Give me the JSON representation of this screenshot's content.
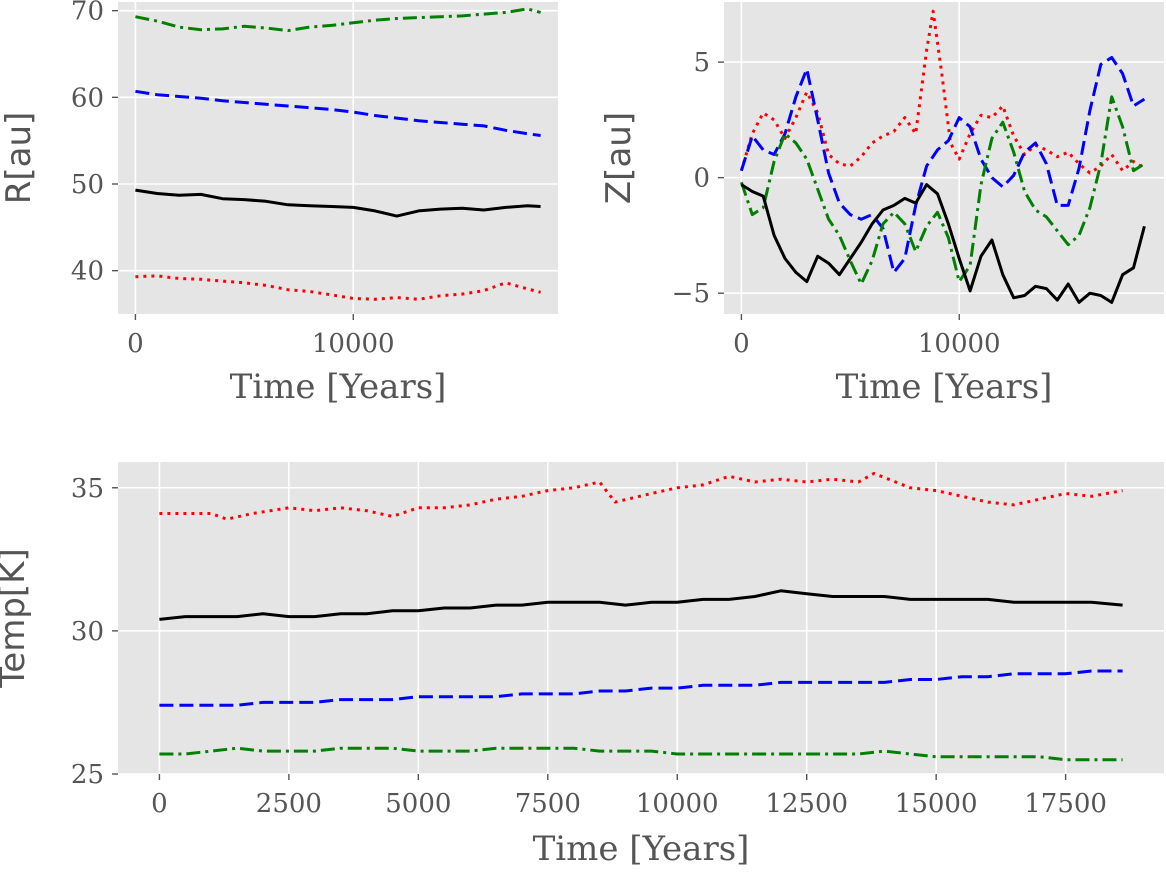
{
  "chart_data": [
    {
      "id": "radius",
      "type": "line",
      "title": "",
      "xlabel": "Time [Years]",
      "ylabel": "R[au]",
      "xlim": [
        -800,
        19400
      ],
      "ylim": [
        35,
        71
      ],
      "xticks": [
        0,
        10000
      ],
      "xtick_labels": [
        "0",
        "10000"
      ],
      "yticks": [
        40,
        50,
        60,
        70
      ],
      "ytick_labels": [
        "40",
        "50",
        "60",
        "70"
      ],
      "grid": true,
      "series": [
        {
          "name": "green",
          "color": "#008000",
          "dash": "dashdot",
          "x": [
            0,
            1000,
            2000,
            3000,
            4000,
            5000,
            6000,
            7000,
            8000,
            9000,
            10000,
            11000,
            12000,
            13000,
            14000,
            15000,
            16000,
            17000,
            18000,
            18600
          ],
          "y": [
            69.3,
            68.8,
            68.1,
            67.8,
            67.9,
            68.2,
            68.0,
            67.7,
            68.1,
            68.3,
            68.6,
            68.9,
            69.1,
            69.2,
            69.3,
            69.4,
            69.6,
            69.8,
            70.2,
            69.8
          ]
        },
        {
          "name": "blue",
          "color": "#0000ff",
          "dash": "dashed",
          "x": [
            0,
            1000,
            2000,
            3000,
            4000,
            5000,
            6000,
            7000,
            8000,
            9000,
            10000,
            11000,
            12000,
            13000,
            14000,
            15000,
            16000,
            17000,
            18000,
            18600
          ],
          "y": [
            60.7,
            60.3,
            60.1,
            59.9,
            59.6,
            59.4,
            59.2,
            59.0,
            58.8,
            58.6,
            58.3,
            57.9,
            57.6,
            57.3,
            57.1,
            56.9,
            56.7,
            56.2,
            55.8,
            55.6
          ]
        },
        {
          "name": "black",
          "color": "#000000",
          "dash": "solid",
          "x": [
            0,
            1000,
            2000,
            3000,
            4000,
            5000,
            6000,
            7000,
            8000,
            9000,
            10000,
            11000,
            12000,
            13000,
            14000,
            15000,
            16000,
            17000,
            18000,
            18600
          ],
          "y": [
            49.3,
            48.9,
            48.7,
            48.8,
            48.3,
            48.2,
            48.0,
            47.6,
            47.5,
            47.4,
            47.3,
            46.9,
            46.3,
            46.9,
            47.1,
            47.2,
            47.0,
            47.3,
            47.5,
            47.4
          ]
        },
        {
          "name": "red",
          "color": "#ff0000",
          "dash": "dotted",
          "x": [
            0,
            1000,
            2000,
            3000,
            4000,
            5000,
            6000,
            7000,
            8000,
            9000,
            10000,
            11000,
            12000,
            13000,
            14000,
            15000,
            16000,
            17000,
            18000,
            18600
          ],
          "y": [
            39.3,
            39.4,
            39.1,
            39.0,
            38.8,
            38.6,
            38.3,
            37.8,
            37.6,
            37.2,
            36.8,
            36.7,
            36.9,
            36.7,
            37.1,
            37.3,
            37.7,
            38.6,
            37.9,
            37.5
          ]
        }
      ]
    },
    {
      "id": "height",
      "type": "line",
      "title": "",
      "xlabel": "Time [Years]",
      "ylabel": "Z[au]",
      "xlim": [
        -800,
        19400
      ],
      "ylim": [
        -5.9,
        7.6
      ],
      "xticks": [
        0,
        10000
      ],
      "xtick_labels": [
        "0",
        "10000"
      ],
      "yticks": [
        -5,
        0,
        5
      ],
      "ytick_labels": [
        "−5",
        "0",
        "5"
      ],
      "grid": true,
      "series": [
        {
          "name": "red",
          "color": "#ff0000",
          "dash": "dotted",
          "x": [
            0,
            500,
            1000,
            1500,
            2000,
            2500,
            3000,
            3500,
            4000,
            4500,
            5000,
            5500,
            6000,
            6500,
            7000,
            7500,
            8000,
            8500,
            8800,
            9200,
            9600,
            10000,
            10500,
            11000,
            11500,
            12000,
            12500,
            13000,
            13500,
            14000,
            14500,
            15000,
            15500,
            16000,
            16500,
            17000,
            17500,
            18000,
            18500
          ],
          "y": [
            0.3,
            1.9,
            2.8,
            2.5,
            1.7,
            2.6,
            3.7,
            2.8,
            1.0,
            0.6,
            0.5,
            0.9,
            1.5,
            1.8,
            2.0,
            2.6,
            1.9,
            5.5,
            7.2,
            4.5,
            1.5,
            0.8,
            1.9,
            2.7,
            2.6,
            3.1,
            1.8,
            1.0,
            1.4,
            1.2,
            0.9,
            1.1,
            0.6,
            0.2,
            0.5,
            1.0,
            0.3,
            0.7,
            0.4
          ]
        },
        {
          "name": "blue",
          "color": "#0000ff",
          "dash": "dashed",
          "x": [
            0,
            500,
            1000,
            1500,
            2000,
            2500,
            3000,
            3500,
            4000,
            4500,
            5000,
            5500,
            6000,
            6500,
            7000,
            7500,
            8000,
            8500,
            9000,
            9500,
            10000,
            10500,
            11000,
            11500,
            12000,
            12500,
            13000,
            13500,
            14000,
            14500,
            15000,
            15500,
            16000,
            16500,
            17000,
            17500,
            18000,
            18500
          ],
          "y": [
            0.3,
            1.8,
            1.2,
            1.0,
            1.9,
            3.5,
            4.7,
            2.5,
            0.2,
            -1.1,
            -1.6,
            -1.8,
            -1.6,
            -2.2,
            -4.1,
            -3.5,
            -1.2,
            0.5,
            1.2,
            1.6,
            2.6,
            2.2,
            0.8,
            0.0,
            -0.4,
            0.1,
            1.1,
            1.5,
            0.6,
            -1.2,
            -1.2,
            0.4,
            2.9,
            4.9,
            5.2,
            4.5,
            3.1,
            3.4
          ]
        },
        {
          "name": "green",
          "color": "#008000",
          "dash": "dashdot",
          "x": [
            0,
            500,
            1000,
            1500,
            2000,
            2500,
            3000,
            3500,
            4000,
            4500,
            5000,
            5500,
            6000,
            6500,
            7000,
            7500,
            8000,
            8500,
            9000,
            9500,
            10000,
            10500,
            11000,
            11500,
            12000,
            12500,
            13000,
            13500,
            14000,
            14500,
            15000,
            15500,
            16000,
            16500,
            17000,
            17500,
            18000,
            18500
          ],
          "y": [
            -0.2,
            -1.6,
            -1.3,
            0.7,
            1.9,
            1.5,
            0.8,
            -0.5,
            -1.8,
            -2.5,
            -3.6,
            -4.6,
            -3.6,
            -2.0,
            -1.5,
            -2.0,
            -3.2,
            -2.1,
            -1.5,
            -2.6,
            -4.5,
            -3.8,
            -0.3,
            1.7,
            2.4,
            1.1,
            -0.6,
            -1.4,
            -1.7,
            -2.3,
            -2.9,
            -2.5,
            -1.3,
            0.6,
            3.5,
            2.2,
            0.3,
            0.6
          ]
        },
        {
          "name": "black",
          "color": "#000000",
          "dash": "solid",
          "x": [
            0,
            500,
            1000,
            1500,
            2000,
            2500,
            3000,
            3500,
            4000,
            4500,
            5000,
            5500,
            6000,
            6500,
            7000,
            7500,
            8000,
            8500,
            9000,
            9500,
            10000,
            10500,
            11000,
            11500,
            12000,
            12500,
            13000,
            13500,
            14000,
            14500,
            15000,
            15500,
            16000,
            16500,
            17000,
            17500,
            18000,
            18500
          ],
          "y": [
            -0.3,
            -0.6,
            -0.8,
            -2.5,
            -3.5,
            -4.1,
            -4.5,
            -3.4,
            -3.7,
            -4.2,
            -3.5,
            -2.8,
            -2.0,
            -1.4,
            -1.2,
            -0.9,
            -1.1,
            -0.3,
            -0.7,
            -2.0,
            -3.5,
            -4.9,
            -3.4,
            -2.7,
            -4.2,
            -5.2,
            -5.1,
            -4.7,
            -4.8,
            -5.3,
            -4.6,
            -5.4,
            -5.0,
            -5.1,
            -5.4,
            -4.2,
            -3.9,
            -2.1
          ]
        }
      ]
    },
    {
      "id": "temperature",
      "type": "line",
      "title": "",
      "xlabel": "Time [Years]",
      "ylabel": "Temp[K]",
      "xlim": [
        -800,
        19400
      ],
      "ylim": [
        25,
        35.9
      ],
      "xticks": [
        0,
        2500,
        5000,
        7500,
        10000,
        12500,
        15000,
        17500
      ],
      "xtick_labels": [
        "0",
        "2500",
        "5000",
        "7500",
        "10000",
        "12500",
        "15000",
        "17500"
      ],
      "yticks": [
        25,
        30,
        35
      ],
      "ytick_labels": [
        "25",
        "30",
        "35"
      ],
      "grid": true,
      "series": [
        {
          "name": "red",
          "color": "#ff0000",
          "dash": "dotted",
          "x": [
            0,
            500,
            1000,
            1300,
            1800,
            2500,
            3000,
            3500,
            4000,
            4500,
            5000,
            5500,
            6000,
            6500,
            7000,
            7500,
            8000,
            8500,
            8800,
            9500,
            10000,
            10500,
            11000,
            11500,
            12000,
            12500,
            13000,
            13500,
            13800,
            14500,
            15000,
            15500,
            16000,
            16500,
            17000,
            17500,
            18000,
            18600
          ],
          "y": [
            34.1,
            34.1,
            34.1,
            33.9,
            34.1,
            34.3,
            34.2,
            34.3,
            34.2,
            34.0,
            34.3,
            34.3,
            34.4,
            34.6,
            34.7,
            34.9,
            35.0,
            35.2,
            34.5,
            34.8,
            35.0,
            35.1,
            35.4,
            35.2,
            35.3,
            35.2,
            35.3,
            35.2,
            35.5,
            35.0,
            34.9,
            34.7,
            34.5,
            34.4,
            34.6,
            34.8,
            34.7,
            34.9
          ]
        },
        {
          "name": "black",
          "color": "#000000",
          "dash": "solid",
          "x": [
            0,
            500,
            1000,
            1500,
            2000,
            2500,
            3000,
            3500,
            4000,
            4500,
            5000,
            5500,
            6000,
            6500,
            7000,
            7500,
            8000,
            8500,
            9000,
            9500,
            10000,
            10500,
            11000,
            11500,
            12000,
            12500,
            13000,
            13500,
            14000,
            14500,
            15000,
            15500,
            16000,
            16500,
            17000,
            17500,
            18000,
            18600
          ],
          "y": [
            30.4,
            30.5,
            30.5,
            30.5,
            30.6,
            30.5,
            30.5,
            30.6,
            30.6,
            30.7,
            30.7,
            30.8,
            30.8,
            30.9,
            30.9,
            31.0,
            31.0,
            31.0,
            30.9,
            31.0,
            31.0,
            31.1,
            31.1,
            31.2,
            31.4,
            31.3,
            31.2,
            31.2,
            31.2,
            31.1,
            31.1,
            31.1,
            31.1,
            31.0,
            31.0,
            31.0,
            31.0,
            30.9
          ]
        },
        {
          "name": "blue",
          "color": "#0000ff",
          "dash": "dashed",
          "x": [
            0,
            500,
            1000,
            1500,
            2000,
            2500,
            3000,
            3500,
            4000,
            4500,
            5000,
            5500,
            6000,
            6500,
            7000,
            7500,
            8000,
            8500,
            9000,
            9500,
            10000,
            10500,
            11000,
            11500,
            12000,
            12500,
            13000,
            13500,
            14000,
            14500,
            15000,
            15500,
            16000,
            16500,
            17000,
            17500,
            18000,
            18600
          ],
          "y": [
            27.4,
            27.4,
            27.4,
            27.4,
            27.5,
            27.5,
            27.5,
            27.6,
            27.6,
            27.6,
            27.7,
            27.7,
            27.7,
            27.7,
            27.8,
            27.8,
            27.8,
            27.9,
            27.9,
            28.0,
            28.0,
            28.1,
            28.1,
            28.1,
            28.2,
            28.2,
            28.2,
            28.2,
            28.2,
            28.3,
            28.3,
            28.4,
            28.4,
            28.5,
            28.5,
            28.5,
            28.6,
            28.6
          ]
        },
        {
          "name": "green",
          "color": "#008000",
          "dash": "dashdot",
          "x": [
            0,
            500,
            1000,
            1500,
            2000,
            2500,
            3000,
            3500,
            4000,
            4500,
            5000,
            5500,
            6000,
            6500,
            7000,
            7500,
            8000,
            8500,
            9000,
            9500,
            10000,
            10500,
            11000,
            11500,
            12000,
            12500,
            13000,
            13500,
            14000,
            14500,
            15000,
            15500,
            16000,
            16500,
            17000,
            17500,
            18000,
            18600
          ],
          "y": [
            25.7,
            25.7,
            25.8,
            25.9,
            25.8,
            25.8,
            25.8,
            25.9,
            25.9,
            25.9,
            25.8,
            25.8,
            25.8,
            25.9,
            25.9,
            25.9,
            25.9,
            25.8,
            25.8,
            25.8,
            25.7,
            25.7,
            25.7,
            25.7,
            25.7,
            25.7,
            25.7,
            25.7,
            25.8,
            25.7,
            25.6,
            25.6,
            25.6,
            25.6,
            25.6,
            25.5,
            25.5,
            25.5
          ]
        }
      ]
    }
  ]
}
